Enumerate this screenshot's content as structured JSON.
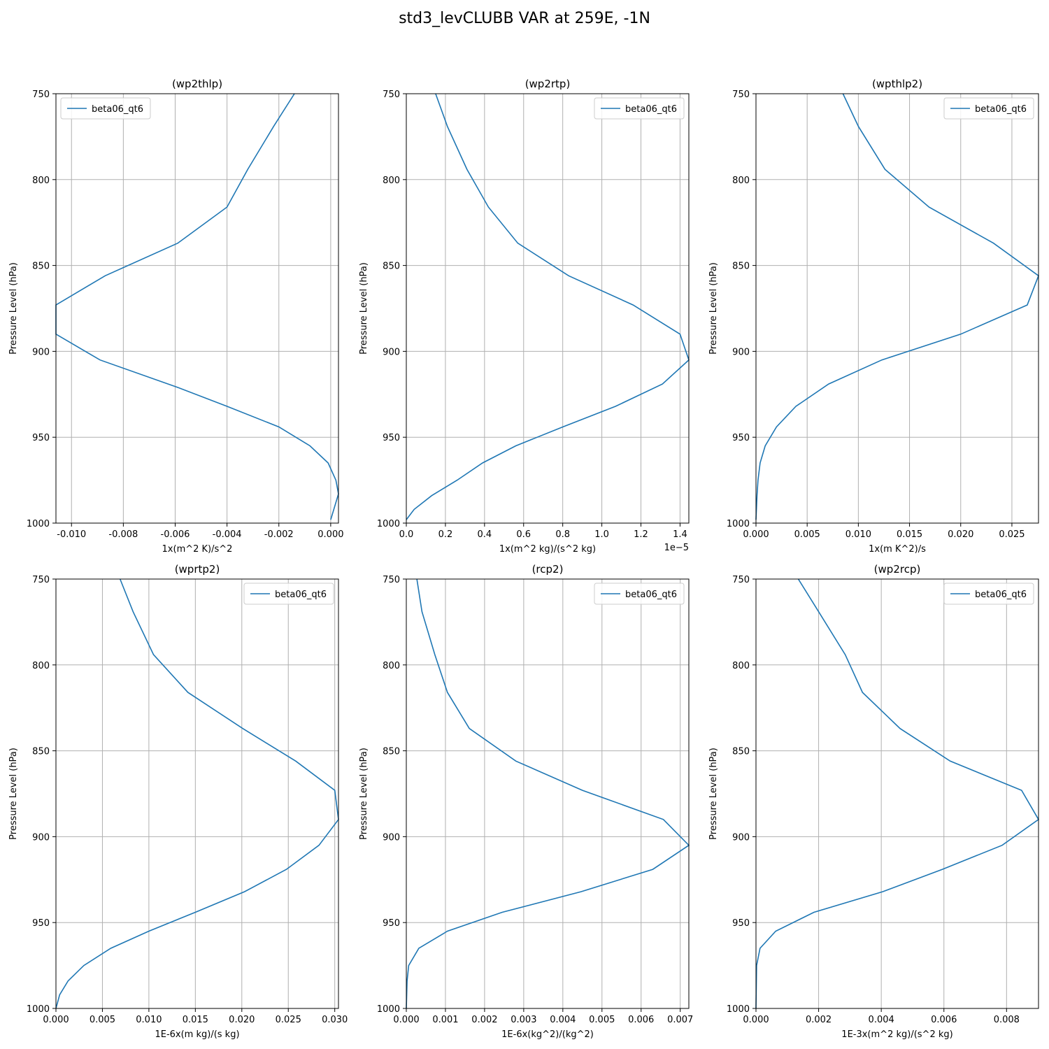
{
  "figure": {
    "title": "std3_levCLUBB VAR at 259E, -1N",
    "line_color": "#1f77b4"
  },
  "chart_data": [
    {
      "type": "line",
      "title": "(wp2thlp)",
      "xlabel": "1x(m^2 K)/s^2",
      "ylabel": "Pressure Level (hPa)",
      "xlim": [
        -0.0106,
        0.0003
      ],
      "ylim": [
        1000,
        750
      ],
      "y_inverted": true,
      "xticks": [
        "-0.010",
        "-0.008",
        "-0.006",
        "-0.004",
        "-0.002",
        "0.000"
      ],
      "xtick_values": [
        -0.01,
        -0.008,
        -0.006,
        -0.004,
        -0.002,
        0.0
      ],
      "yticks": [
        750,
        800,
        850,
        900,
        950,
        1000
      ],
      "x_offset_label": "",
      "grid": true,
      "legend_position": "top-left",
      "series": [
        {
          "name": "beta06_qt6",
          "x": [
            -0.0014,
            -0.0022,
            -0.0032,
            -0.004,
            -0.0059,
            -0.0087,
            -0.0106,
            -0.0106,
            -0.0089,
            -0.0059,
            -0.004,
            -0.002,
            -0.0008,
            -0.0001,
            0.0002,
            0.0003,
            0.0
          ],
          "y": [
            750,
            769,
            794,
            816,
            837,
            856,
            873,
            890,
            905,
            921,
            932,
            944,
            955,
            965,
            975,
            983,
            998
          ]
        }
      ]
    },
    {
      "type": "line",
      "title": "(wp2rtp)",
      "xlabel": "1x(m^2 kg)/(s^2 kg)",
      "ylabel": "Pressure Level (hPa)",
      "xlim": [
        0.0,
        1.445
      ],
      "ylim": [
        1000,
        750
      ],
      "y_inverted": true,
      "xticks": [
        "0.0",
        "0.2",
        "0.4",
        "0.6",
        "0.8",
        "1.0",
        "1.2",
        "1.4"
      ],
      "xtick_values": [
        0.0,
        0.2,
        0.4,
        0.6,
        0.8,
        1.0,
        1.2,
        1.4
      ],
      "yticks": [
        750,
        800,
        850,
        900,
        950,
        1000
      ],
      "x_offset_label": "1e−5",
      "grid": true,
      "legend_position": "top-right",
      "series": [
        {
          "name": "beta06_qt6",
          "x": [
            0.15,
            0.21,
            0.31,
            0.42,
            0.57,
            0.83,
            1.16,
            1.4,
            1.445,
            1.31,
            1.07,
            0.8,
            0.56,
            0.39,
            0.26,
            0.13,
            0.04,
            0.0
          ],
          "y": [
            750,
            769,
            794,
            816,
            837,
            856,
            873,
            890,
            905,
            919,
            932,
            944,
            955,
            965,
            975,
            984,
            992,
            998
          ]
        }
      ]
    },
    {
      "type": "line",
      "title": "(wpthlp2)",
      "xlabel": "1x(m K^2)/s",
      "ylabel": "Pressure Level (hPa)",
      "xlim": [
        0.0,
        0.0276
      ],
      "ylim": [
        1000,
        750
      ],
      "y_inverted": true,
      "xticks": [
        "0.000",
        "0.005",
        "0.010",
        "0.015",
        "0.020",
        "0.025"
      ],
      "xtick_values": [
        0.0,
        0.005,
        0.01,
        0.015,
        0.02,
        0.025
      ],
      "yticks": [
        750,
        800,
        850,
        900,
        950,
        1000
      ],
      "x_offset_label": "",
      "grid": true,
      "legend_position": "top-right",
      "series": [
        {
          "name": "beta06_qt6",
          "x": [
            0.0085,
            0.01,
            0.0126,
            0.0169,
            0.0232,
            0.0276,
            0.0265,
            0.02,
            0.0123,
            0.0071,
            0.0039,
            0.002,
            0.0009,
            0.0004,
            0.0002,
            0.0001,
            0.0
          ],
          "y": [
            750,
            769,
            794,
            816,
            837,
            856,
            873,
            890,
            905,
            919,
            932,
            944,
            955,
            965,
            975,
            984,
            998
          ]
        }
      ]
    },
    {
      "type": "line",
      "title": "(wprtp2)",
      "xlabel": "1E-6x(m kg)/(s kg)",
      "ylabel": "Pressure Level (hPa)",
      "xlim": [
        0.0,
        0.0304
      ],
      "ylim": [
        1000,
        750
      ],
      "y_inverted": true,
      "xticks": [
        "0.000",
        "0.005",
        "0.010",
        "0.015",
        "0.020",
        "0.025",
        "0.030"
      ],
      "xtick_values": [
        0.0,
        0.005,
        0.01,
        0.015,
        0.02,
        0.025,
        0.03
      ],
      "yticks": [
        750,
        800,
        850,
        900,
        950,
        1000
      ],
      "x_offset_label": "",
      "grid": true,
      "legend_position": "top-right",
      "series": [
        {
          "name": "beta06_qt6",
          "x": [
            0.0069,
            0.0083,
            0.0105,
            0.0142,
            0.0201,
            0.0258,
            0.03,
            0.0304,
            0.0283,
            0.0248,
            0.0203,
            0.015,
            0.01,
            0.0059,
            0.003,
            0.0013,
            0.0004,
            0.0
          ],
          "y": [
            750,
            769,
            794,
            816,
            837,
            856,
            873,
            890,
            905,
            919,
            932,
            944,
            955,
            965,
            975,
            984,
            992,
            1000
          ]
        }
      ]
    },
    {
      "type": "line",
      "title": "(rcp2)",
      "xlabel": "1E-6x(kg^2)/(kg^2)",
      "ylabel": "Pressure Level (hPa)",
      "xlim": [
        0.0,
        0.00722
      ],
      "ylim": [
        1000,
        750
      ],
      "y_inverted": true,
      "xticks": [
        "0.000",
        "0.001",
        "0.002",
        "0.003",
        "0.004",
        "0.005",
        "0.006",
        "0.007"
      ],
      "xtick_values": [
        0.0,
        0.001,
        0.002,
        0.003,
        0.004,
        0.005,
        0.006,
        0.007
      ],
      "yticks": [
        750,
        800,
        850,
        900,
        950,
        1000
      ],
      "x_offset_label": "",
      "grid": true,
      "legend_position": "top-right",
      "series": [
        {
          "name": "beta06_qt6",
          "x": [
            0.00027,
            0.0004,
            0.00073,
            0.00105,
            0.00161,
            0.0028,
            0.0045,
            0.00657,
            0.00722,
            0.0063,
            0.00447,
            0.00245,
            0.00105,
            0.00032,
            6e-05,
            2e-05,
            0.0
          ],
          "y": [
            750,
            769,
            794,
            816,
            837,
            856,
            873,
            890,
            905,
            919,
            932,
            944,
            955,
            965,
            975,
            984,
            1000
          ]
        }
      ]
    },
    {
      "type": "line",
      "title": "(wp2rcp)",
      "xlabel": "1E-3x(m^2 kg)/(s^2 kg)",
      "ylabel": "Pressure Level (hPa)",
      "xlim": [
        0.0,
        0.00902
      ],
      "ylim": [
        1000,
        750
      ],
      "y_inverted": true,
      "xticks": [
        "0.000",
        "0.002",
        "0.004",
        "0.006",
        "0.008"
      ],
      "xtick_values": [
        0.0,
        0.002,
        0.004,
        0.006,
        0.008
      ],
      "yticks": [
        750,
        800,
        850,
        900,
        950,
        1000
      ],
      "x_offset_label": "",
      "grid": true,
      "legend_position": "top-right",
      "series": [
        {
          "name": "beta06_qt6",
          "x": [
            0.00135,
            0.002,
            0.00285,
            0.0034,
            0.0046,
            0.0062,
            0.00848,
            0.00902,
            0.00786,
            0.00595,
            0.00405,
            0.00185,
            0.00063,
            0.00013,
            2e-05,
            0.0
          ],
          "y": [
            750,
            769,
            794,
            816,
            837,
            856,
            873,
            890,
            905,
            919,
            932,
            944,
            955,
            965,
            975,
            1000
          ]
        }
      ]
    }
  ]
}
